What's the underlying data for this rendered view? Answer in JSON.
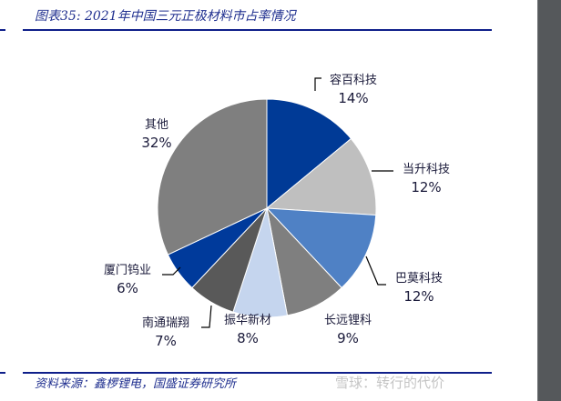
{
  "header": {
    "title": "图表35:  2021年中国三元正极材料市占率情况"
  },
  "footer": {
    "source": "资料来源：鑫椤锂电，国盛证券研究所",
    "watermark": "雪球：转行的代价"
  },
  "chart_data": {
    "type": "pie",
    "title": "2021年中国三元正极材料市占率情况",
    "categories": [
      "容百科技",
      "当升科技",
      "巴莫科技",
      "长远锂科",
      "振华新材",
      "南通瑞翔",
      "厦门钨业",
      "其他"
    ],
    "values": [
      14,
      12,
      12,
      9,
      8,
      7,
      6,
      32
    ],
    "labels": [
      "14%",
      "12%",
      "12%",
      "9%",
      "8%",
      "7%",
      "6%",
      "32%"
    ],
    "colors": [
      "#003a96",
      "#bfbfbf",
      "#4f81c5",
      "#7f7f7f",
      "#c5d5ee",
      "#595959",
      "#003a9b",
      "#7f7f7f"
    ],
    "start_angle": "12 o'clock, clockwise",
    "legend": "none (data labels with leader lines)"
  }
}
